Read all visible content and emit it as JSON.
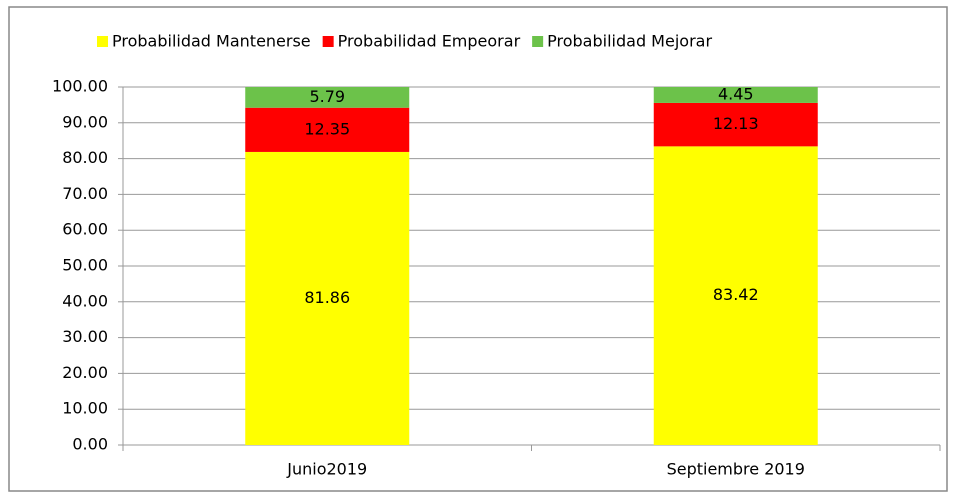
{
  "chart_data": {
    "type": "stacked_bar",
    "categories": [
      "Junio2019",
      "Septiembre 2019"
    ],
    "series": [
      {
        "name": "Probabilidad Mantenerse",
        "color": "#ffff00",
        "values": [
          81.86,
          83.42
        ]
      },
      {
        "name": "Probabilidad Empeorar",
        "color": "#ff0000",
        "values": [
          12.35,
          12.13
        ]
      },
      {
        "name": "Probabilidad Mejorar",
        "color": "#6cc24a",
        "values": [
          5.79,
          4.45
        ]
      }
    ],
    "ylim": [
      0,
      100
    ],
    "yticks": [
      {
        "value": 0,
        "label": "0.00"
      },
      {
        "value": 10,
        "label": "10.00"
      },
      {
        "value": 20,
        "label": "20.00"
      },
      {
        "value": 30,
        "label": "30.00"
      },
      {
        "value": 40,
        "label": "40.00"
      },
      {
        "value": 50,
        "label": "50.00"
      },
      {
        "value": 60,
        "label": "60.00"
      },
      {
        "value": 70,
        "label": "70.00"
      },
      {
        "value": 80,
        "label": "80.00"
      },
      {
        "value": 90,
        "label": "90.00"
      },
      {
        "value": 100,
        "label": "100.00"
      }
    ],
    "grid": true,
    "legend": "top"
  }
}
